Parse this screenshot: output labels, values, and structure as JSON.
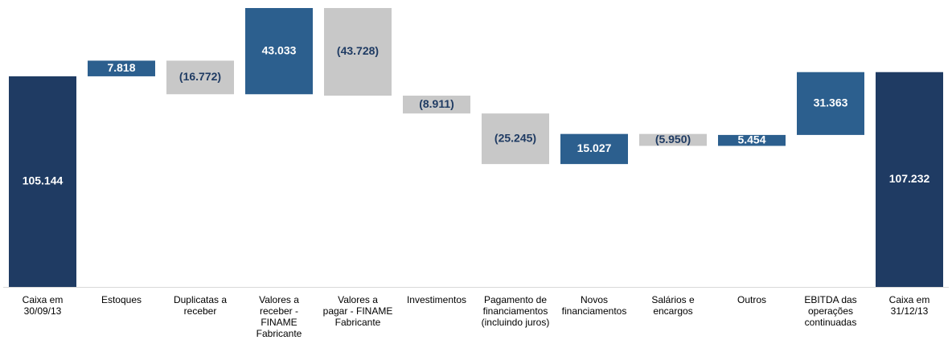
{
  "chart_data": {
    "type": "waterfall",
    "categories": [
      "Caixa em\n30/09/13",
      "Estoques",
      "Duplicatas a\nreceber",
      "Valores a\nreceber -\nFINAME\nFabricante",
      "Valores a\npagar - FINAME\nFabricante",
      "Investimentos",
      "Pagamento de\nfinanciamentos\n(incluindo juros)",
      "Novos\nfinanciamentos",
      "Salários e\nencargos",
      "Outros",
      "EBITDA das\noperações\ncontinuadas",
      "Caixa em\n31/12/13"
    ],
    "values": [
      105144,
      7818,
      -16772,
      43033,
      -43728,
      -8911,
      -25245,
      15027,
      -5950,
      5454,
      31363,
      107232
    ],
    "value_labels": [
      "105.144",
      "7.818",
      "(16.772)",
      "43.033",
      "(43.728)",
      "(8.911)",
      "(25.245)",
      "15.027",
      "(5.950)",
      "5.454",
      "31.363",
      "107.232"
    ],
    "totals": [
      true,
      false,
      false,
      false,
      false,
      false,
      false,
      false,
      false,
      false,
      false,
      true
    ],
    "total_color": "#1f3b63",
    "increase_color": "#2c5f8e",
    "decrease_color": "#c8c8c8",
    "light_label_color": "#ffffff",
    "dark_label_color": "#1f3b63"
  }
}
